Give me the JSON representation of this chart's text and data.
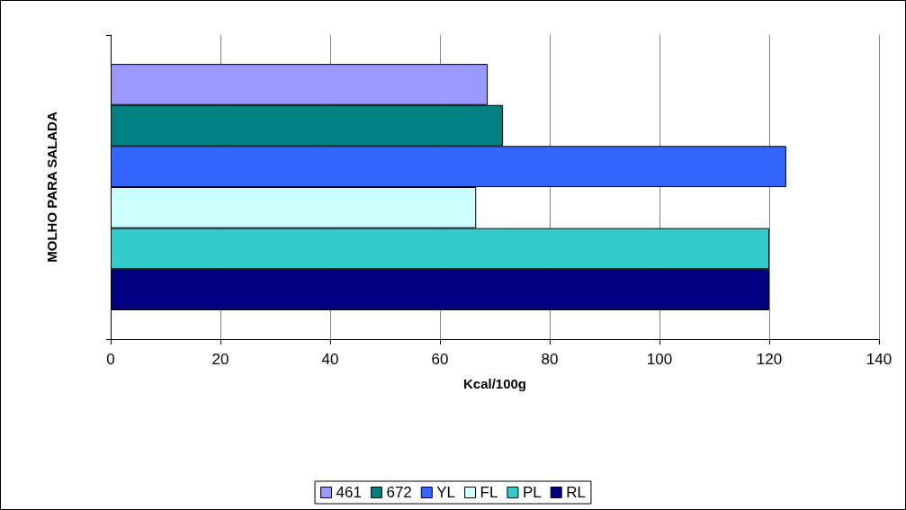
{
  "chart_data": {
    "type": "bar",
    "orientation": "horizontal",
    "xlabel": "Kcal/100g",
    "ylabel": "MOLHO PARA SALADA",
    "categories": [
      null
    ],
    "series": [
      {
        "name": "461",
        "color": "#9999ff",
        "values": [
          68.7
        ]
      },
      {
        "name": "672",
        "color": "#008080",
        "values": [
          71.5
        ]
      },
      {
        "name": "YL",
        "color": "#3366ff",
        "values": [
          123.1
        ]
      },
      {
        "name": "FL",
        "color": "#ccffff",
        "values": [
          66.6
        ]
      },
      {
        "name": "PL",
        "color": "#33cccc",
        "values": [
          120
        ]
      },
      {
        "name": "RL",
        "color": "#000080",
        "values": [
          120
        ]
      }
    ],
    "xlim": [
      0,
      140
    ],
    "xticks": [
      0,
      20,
      40,
      60,
      80,
      100,
      120,
      140
    ],
    "grid": "x",
    "legend": "bottom"
  }
}
